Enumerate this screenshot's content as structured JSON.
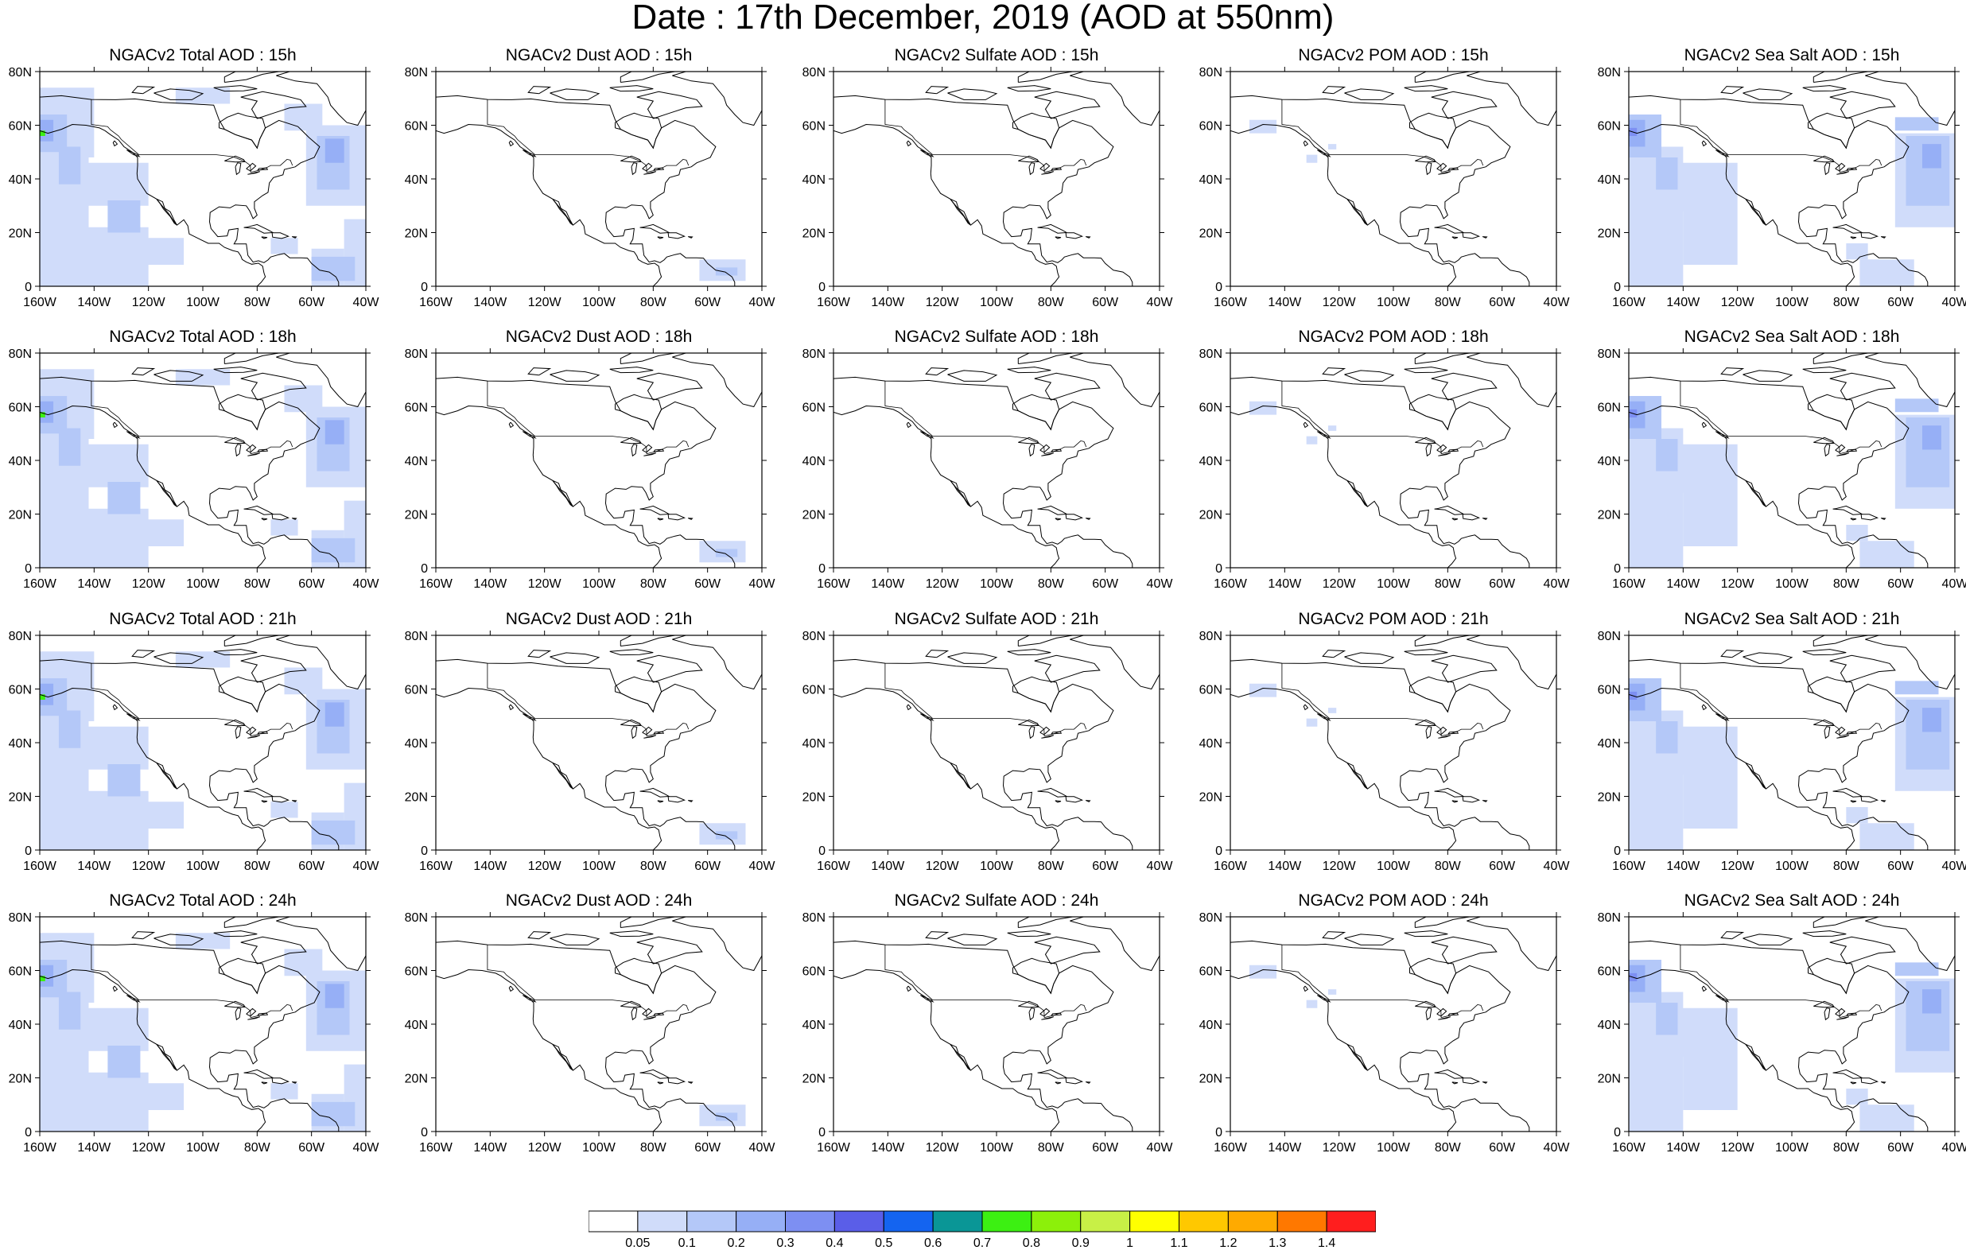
{
  "title": "Date : 17th December, 2019 (AOD at 550nm)",
  "lon_ticks": [
    "160W",
    "140W",
    "120W",
    "100W",
    "80W",
    "60W",
    "40W"
  ],
  "lat_ticks": [
    "0",
    "20N",
    "40N",
    "60N",
    "80N"
  ],
  "columns": [
    {
      "id": "total",
      "kind": "total"
    },
    {
      "id": "dust",
      "kind": "dust"
    },
    {
      "id": "sulfate",
      "kind": "sulfate"
    },
    {
      "id": "pom",
      "kind": "pom"
    },
    {
      "id": "seasalt",
      "kind": "seasalt"
    }
  ],
  "rows": [
    {
      "hour": "15h",
      "titles": [
        "NGACv2 Total AOD : 15h",
        "NGACv2 Dust AOD : 15h",
        "NGACv2 Sulfate AOD : 15h",
        "NGACv2 POM AOD : 15h",
        "NGACv2 Sea Salt AOD : 15h"
      ]
    },
    {
      "hour": "18h",
      "titles": [
        "NGACv2 Total AOD : 18h",
        "NGACv2 Dust AOD : 18h",
        "NGACv2 Sulfate AOD : 18h",
        "NGACv2 POM AOD : 18h",
        "NGACv2 Sea Salt AOD : 18h"
      ]
    },
    {
      "hour": "21h",
      "titles": [
        "NGACv2 Total AOD : 21h",
        "NGACv2 Dust AOD : 21h",
        "NGACv2 Sulfate AOD : 21h",
        "NGACv2 POM AOD : 21h",
        "NGACv2 Sea Salt AOD : 21h"
      ]
    },
    {
      "hour": "24h",
      "titles": [
        "NGACv2 Total AOD : 24h",
        "NGACv2 Dust AOD : 24h",
        "NGACv2 Sulfate AOD : 24h",
        "NGACv2 POM AOD : 24h",
        "NGACv2 Sea Salt  AOD : 24h"
      ]
    }
  ],
  "colorbar": {
    "labels": [
      "0.05",
      "0.1",
      "0.2",
      "0.3",
      "0.4",
      "0.5",
      "0.6",
      "0.7",
      "0.8",
      "0.9",
      "1",
      "1.1",
      "1.2",
      "1.3",
      "1.4"
    ],
    "colors": [
      "#ffffff",
      "#d0dcfa",
      "#b4c8f8",
      "#96aff6",
      "#7d8ff2",
      "#5a5ee8",
      "#1464f0",
      "#0a9696",
      "#3cf012",
      "#8cf00a",
      "#c8f046",
      "#ffff00",
      "#ffc800",
      "#ffaa00",
      "#ff7800",
      "#ff1e1e"
    ]
  }
}
